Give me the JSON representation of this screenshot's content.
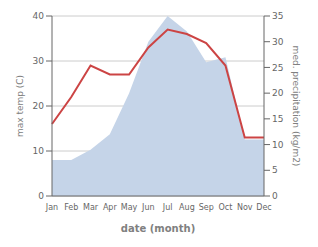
{
  "chart_data": {
    "type": "line",
    "categories": [
      "Jan",
      "Feb",
      "Mar",
      "Apr",
      "May",
      "Jun",
      "Jul",
      "Aug",
      "Sep",
      "Oct",
      "Nov",
      "Dec"
    ],
    "series": [
      {
        "type": "area",
        "axis": "y2",
        "color": "#c5d4e8",
        "values": [
          7,
          7,
          9,
          12,
          20,
          30,
          35,
          32,
          26,
          27,
          11,
          11
        ]
      },
      {
        "type": "line",
        "axis": "y",
        "color": "#cc4444",
        "values": [
          16,
          22,
          29,
          27,
          27,
          33,
          37,
          36,
          34,
          29,
          13,
          13
        ]
      }
    ],
    "xlabel": "date (month)",
    "ylabel": "max temp (C)",
    "y2label": "med. precipitation (kg/m2)",
    "ylim": [
      0,
      40
    ],
    "yticks": [
      0,
      10,
      20,
      30,
      40
    ],
    "y2lim": [
      0,
      35
    ],
    "y2ticks": [
      0,
      5,
      10,
      15,
      20,
      25,
      30,
      35
    ],
    "grid": true
  }
}
